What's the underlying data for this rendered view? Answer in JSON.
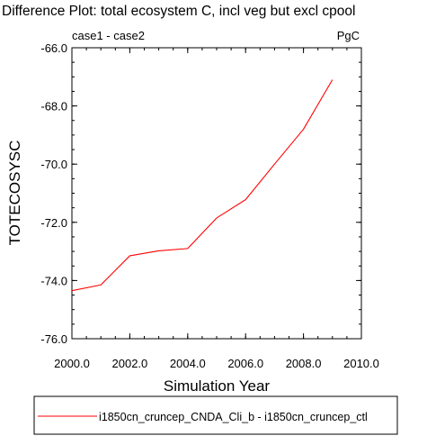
{
  "chart_data": {
    "type": "line",
    "title": "Difference Plot: total ecosystem C, incl veg but excl cpool",
    "subtitle_left": "case1 - case2",
    "units": "PgC",
    "xlabel": "Simulation Year",
    "ylabel": "TOTECOSYSC",
    "xlim": [
      2000,
      2010
    ],
    "ylim": [
      -76,
      -66
    ],
    "x_ticks": [
      2000,
      2002,
      2004,
      2006,
      2008,
      2010
    ],
    "x_tick_labels": [
      "2000.0",
      "2002.0",
      "2004.0",
      "2006.0",
      "2008.0",
      "2010.0"
    ],
    "y_ticks": [
      -76,
      -74,
      -72,
      -70,
      -68,
      -66
    ],
    "y_tick_labels": [
      "-76.0",
      "-74.0",
      "-72.0",
      "-70.0",
      "-68.0",
      "-66.0"
    ],
    "x_minor_step": 0.5,
    "y_minor_step": 0.5,
    "grid": false,
    "legend_position": "bottom",
    "series": [
      {
        "name": "i1850cn_cruncep_CNDA_Cli_b - i1850cn_cruncep_ctl",
        "color": "#ff0000",
        "x": [
          2000,
          2001,
          2002,
          2003,
          2004,
          2005,
          2006,
          2007,
          2008,
          2009
        ],
        "values": [
          -74.35,
          -74.15,
          -73.15,
          -72.98,
          -72.9,
          -71.85,
          -71.22,
          -70.0,
          -68.8,
          -67.1
        ]
      }
    ]
  }
}
